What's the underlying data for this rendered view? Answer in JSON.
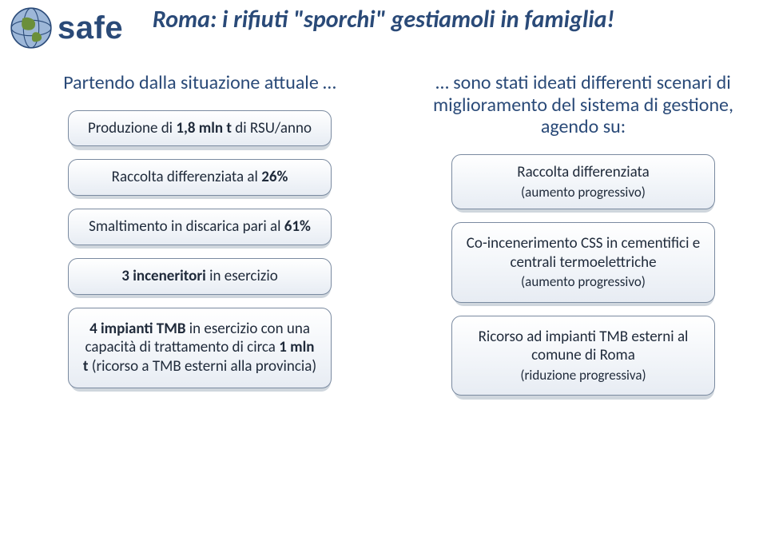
{
  "logo": {
    "text": "safe"
  },
  "title": "Roma: i rifiuti \"sporchi\" gestiamoli in famiglia!",
  "left": {
    "intro": "Partendo dalla situazione attuale …",
    "items": [
      {
        "html": "Produzione di <b>1,8 mln t</b> di RSU/anno"
      },
      {
        "html": "Raccolta differenziata al <b>26%</b>"
      },
      {
        "html": "Smaltimento in discarica pari al <b>61%</b>"
      },
      {
        "html": "<b>3 inceneritori</b> in esercizio"
      },
      {
        "html": "<b>4 impianti TMB</b> in esercizio con una capacità di trattamento di circa <b>1 mln t</b> (ricorso a TMB esterni alla provincia)",
        "tall": true
      }
    ]
  },
  "right": {
    "intro": "… sono stati ideati differenti scenari di miglioramento del sistema di gestione, agendo su:",
    "items": [
      {
        "html": "Raccolta differenziata<br><span class=\"sub\">(aumento progressivo)</span>"
      },
      {
        "html": "Co-incenerimento CSS in cementifici e centrali termoelettriche<br><span class=\"sub\">(aumento progressivo)</span>",
        "tall": true
      },
      {
        "html": "Ricorso ad impianti TMB esterni al comune di Roma<br><span class=\"sub\">(riduzione progressiva)</span>",
        "tall": true
      }
    ]
  },
  "colors": {
    "brand": "#2a4a78",
    "pill_border": "#7a8aa0",
    "pill_shadow": "#cfd6dd"
  }
}
